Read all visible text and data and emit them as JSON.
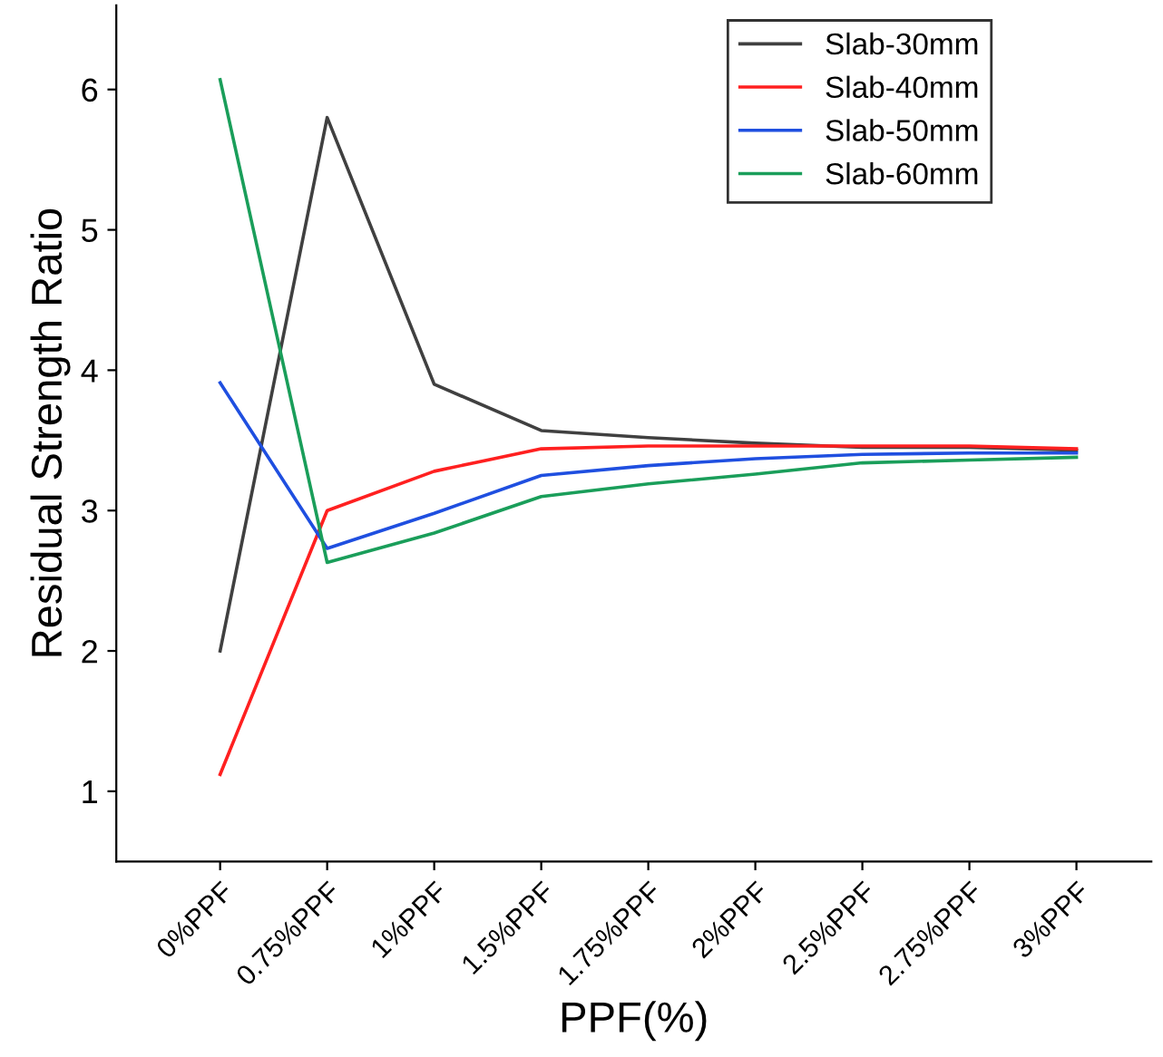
{
  "chart_data": {
    "type": "line",
    "xlabel": "PPF(%)",
    "ylabel": "Residual Strength Ratio",
    "categories": [
      "0%PPF",
      "0.75%PPF",
      "1%PPF",
      "1.5%PPF",
      "1.75%PPF",
      "2%PPF",
      "2.5%PPF",
      "2.75%PPF",
      "3%PPF"
    ],
    "series": [
      {
        "name": "Slab-30mm",
        "color": "#404040",
        "values": [
          2.0,
          5.8,
          3.9,
          3.57,
          3.52,
          3.48,
          3.45,
          3.45,
          3.43
        ]
      },
      {
        "name": "Slab-40mm",
        "color": "#ff2020",
        "values": [
          1.12,
          3.0,
          3.28,
          3.44,
          3.46,
          3.46,
          3.46,
          3.46,
          3.44
        ]
      },
      {
        "name": "Slab-50mm",
        "color": "#1f4fe0",
        "values": [
          3.91,
          2.73,
          2.98,
          3.25,
          3.32,
          3.37,
          3.4,
          3.41,
          3.41
        ]
      },
      {
        "name": "Slab-60mm",
        "color": "#1a9e5a",
        "values": [
          6.07,
          2.63,
          2.84,
          3.1,
          3.19,
          3.26,
          3.34,
          3.36,
          3.38
        ]
      }
    ],
    "ylim": [
      0.5,
      6.6
    ],
    "yticks": [
      1,
      2,
      3,
      4,
      5,
      6
    ],
    "grid": false,
    "legend": "top right",
    "marker": "none",
    "line_style": "solid"
  }
}
